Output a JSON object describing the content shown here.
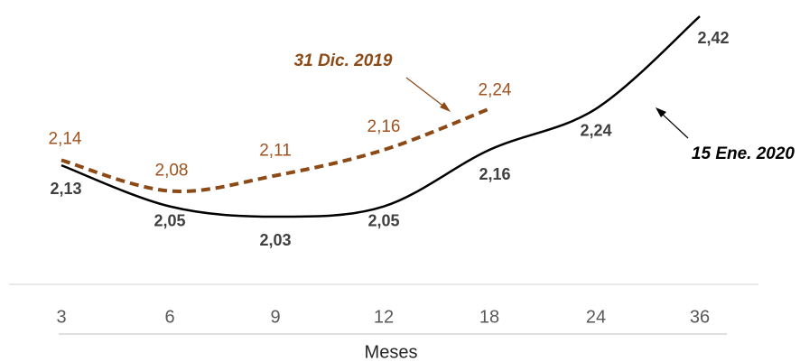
{
  "chart_data": {
    "type": "line",
    "categories": [
      "3",
      "6",
      "9",
      "12",
      "18",
      "24",
      "36"
    ],
    "x_label": "Meses",
    "ylim": [
      1.9,
      2.45
    ],
    "series": [
      {
        "name": "15 Ene. 2020",
        "color": "#000000",
        "style": "solid",
        "values": [
          2.13,
          2.05,
          2.03,
          2.05,
          2.16,
          2.24,
          2.42
        ],
        "value_labels": [
          "2,13",
          "2,05",
          "2,03",
          "2,05",
          "2,16",
          "2,24",
          "2,42"
        ]
      },
      {
        "name": "31 Dic. 2019",
        "color": "#8b4a16",
        "style": "dashed",
        "values": [
          2.14,
          2.08,
          2.11,
          2.16,
          2.24,
          null,
          null
        ],
        "value_labels": [
          "2,14",
          "2,08",
          "2,11",
          "2,16",
          "2,24",
          null,
          null
        ]
      }
    ]
  }
}
